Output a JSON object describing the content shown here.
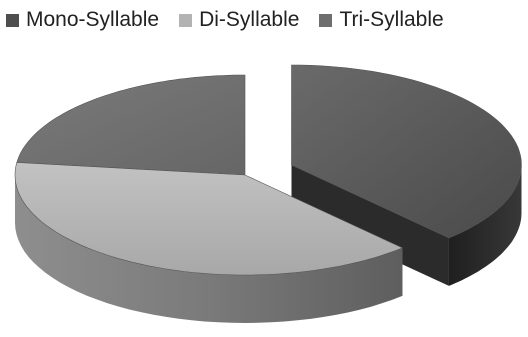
{
  "chart_data": {
    "type": "pie",
    "title": "",
    "categories": [
      "Mono-Syllable",
      "Di-Syllable",
      "Tri-Syllable"
    ],
    "values": [
      38,
      39,
      23
    ],
    "exploded": true,
    "three_d": true,
    "legend_position": "top",
    "colors": [
      "#5c5c5c",
      "#b3b3b3",
      "#6e6e6e"
    ]
  }
}
